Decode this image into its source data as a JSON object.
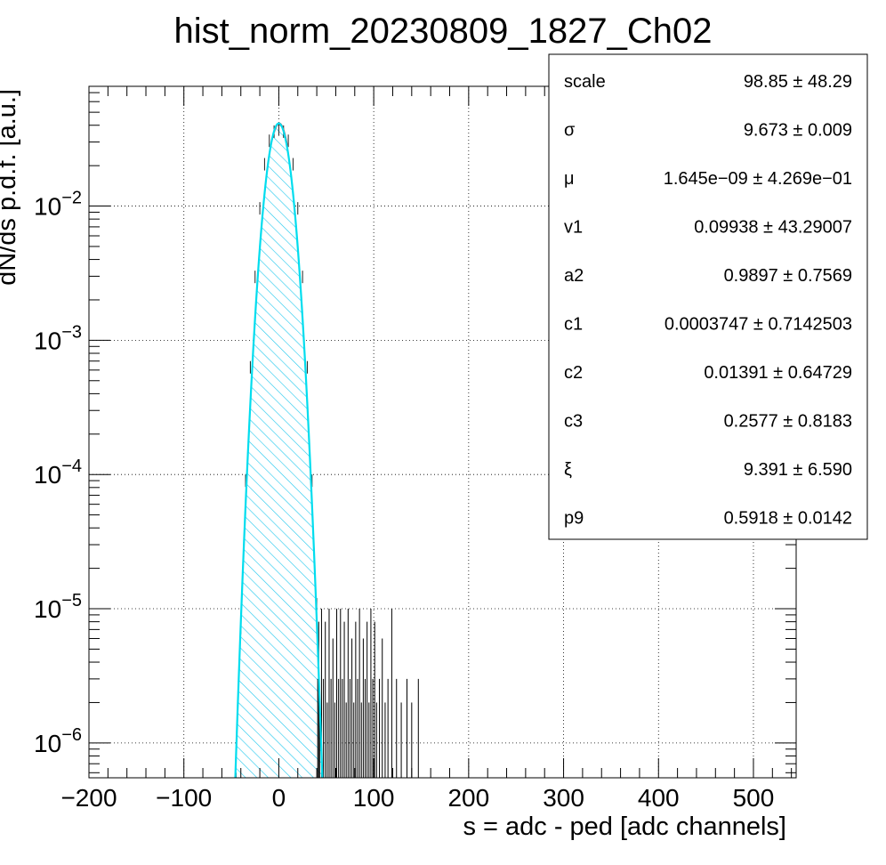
{
  "chart_data": {
    "type": "histogram",
    "title": "hist_norm_20230809_1827_Ch02",
    "xlabel": "s = adc - ped [adc channels]",
    "ylabel": "dN/ds p.d.f. [a.u.]",
    "xlim": [
      -200,
      545
    ],
    "ylim": [
      5.5e-07,
      0.078
    ],
    "yscale": "log",
    "grid": true,
    "x_ticks": [
      -200,
      -100,
      0,
      100,
      200,
      300,
      400,
      500
    ],
    "x_tick_labels": [
      "−200",
      "−100",
      "0",
      "100",
      "200",
      "300",
      "400",
      "500"
    ],
    "y_ticks": [
      {
        "value": 1e-06,
        "base": "10",
        "exp": "−6"
      },
      {
        "value": 1e-05,
        "base": "10",
        "exp": "−5"
      },
      {
        "value": 0.0001,
        "base": "10",
        "exp": "−4"
      },
      {
        "value": 0.001,
        "base": "10",
        "exp": "−3"
      },
      {
        "value": 0.01,
        "base": "10",
        "exp": "−2"
      }
    ],
    "series": [
      {
        "kind": "histogram",
        "color": "#00c8ee",
        "hatch": true,
        "x": [
          -45,
          -40,
          -35,
          -30,
          -25,
          -20,
          -15,
          -10,
          -5,
          0,
          5,
          10,
          15,
          20,
          25,
          30,
          35,
          40,
          45
        ],
        "values": [
          6e-07,
          8e-06,
          0.0001,
          0.0007,
          0.0033,
          0.0107,
          0.0228,
          0.0341,
          0.0399,
          0.0413,
          0.0399,
          0.0341,
          0.0228,
          0.0107,
          0.0033,
          0.0007,
          0.0001,
          1.2e-05,
          1.5e-06
        ]
      },
      {
        "kind": "tail-entries",
        "color": "#000000",
        "x": [
          41,
          42,
          43,
          45,
          47,
          49,
          51,
          53,
          55,
          57,
          59,
          61,
          63,
          65,
          67,
          69,
          71,
          73,
          75,
          77,
          79,
          81,
          83,
          85,
          87,
          89,
          91,
          93,
          95,
          97,
          99,
          101,
          103,
          106,
          109,
          112,
          115,
          119,
          124,
          129,
          135,
          140,
          147,
          545
        ],
        "values": [
          3e-06,
          8e-06,
          2e-06,
          1e-05,
          3e-06,
          8e-06,
          2e-06,
          1e-05,
          3e-06,
          6e-06,
          2e-06,
          1e-05,
          3e-06,
          1e-05,
          3e-06,
          8e-06,
          2e-06,
          1e-05,
          3e-06,
          6e-06,
          2e-06,
          8e-06,
          3e-06,
          1e-05,
          2e-06,
          6e-06,
          3e-06,
          8e-06,
          2e-06,
          1e-05,
          3e-06,
          8e-06,
          2e-06,
          3e-06,
          6e-06,
          2e-06,
          3e-06,
          1e-05,
          3e-06,
          2e-06,
          3e-06,
          2e-06,
          3e-06,
          3e-06
        ]
      },
      {
        "kind": "fit",
        "color": "#00ddee",
        "function": "gaussian",
        "scale": 0.0413,
        "mu": 0,
        "sigma": 9.673
      },
      {
        "kind": "fit-component",
        "color": "#e01010",
        "function": "gaussian",
        "scale": 0.0413,
        "mu": 0.3,
        "sigma": 9.68
      }
    ],
    "stats": [
      {
        "name": "scale",
        "value": "98.85 ± 48.29"
      },
      {
        "name": "σ",
        "value": "9.673 ± 0.009"
      },
      {
        "name": "μ",
        "value": "1.645e−09 ± 4.269e−01"
      },
      {
        "name": "v1",
        "value": "0.09938 ± 43.29007"
      },
      {
        "name": "a2",
        "value": "0.9897 ± 0.7569"
      },
      {
        "name": "c1",
        "value": "0.0003747 ± 0.7142503"
      },
      {
        "name": "c2",
        "value": "0.01391 ± 0.64729"
      },
      {
        "name": "c3",
        "value": "0.2577 ± 0.8183"
      },
      {
        "name": "ξ",
        "value": "9.391 ± 6.590"
      },
      {
        "name": "p9",
        "value": "0.5918 ± 0.0142"
      }
    ]
  }
}
